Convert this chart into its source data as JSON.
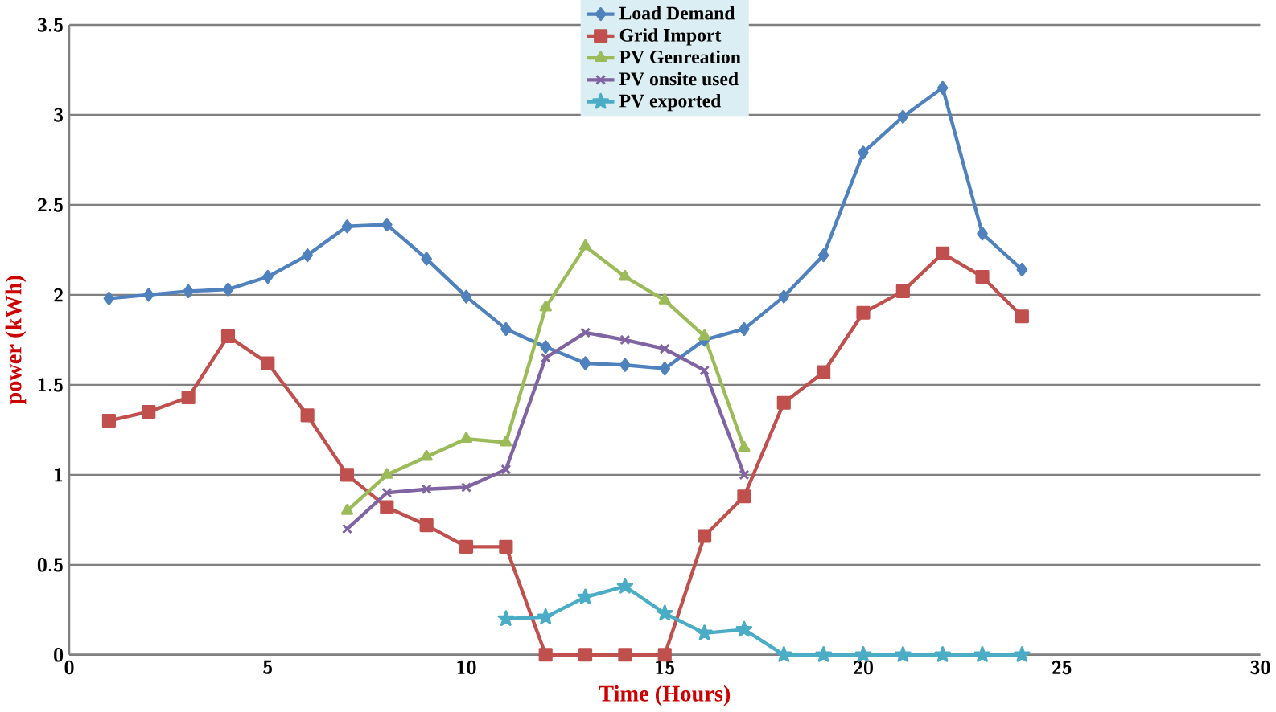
{
  "chart_data": {
    "type": "line",
    "xlabel": "Time (Hours)",
    "ylabel": "power (kWh)",
    "xlim": [
      0,
      30
    ],
    "xticks": [
      0,
      5,
      10,
      15,
      20,
      25,
      30
    ],
    "ylim": [
      0,
      3.5
    ],
    "yticks": [
      0,
      0.5,
      1,
      1.5,
      2,
      2.5,
      3,
      3.5
    ],
    "grid": "y",
    "legend": "top",
    "line_style": "solid",
    "series": [
      {
        "name": "Load Demand",
        "color": "#4f81bd",
        "marker": "diamond",
        "x": [
          1,
          2,
          3,
          4,
          5,
          6,
          7,
          8,
          9,
          10,
          11,
          12,
          13,
          14,
          15,
          16,
          17,
          18,
          19,
          20,
          21,
          22,
          23,
          24
        ],
        "values": [
          1.98,
          2.0,
          2.02,
          2.03,
          2.1,
          2.22,
          2.38,
          2.39,
          2.2,
          1.99,
          1.81,
          1.71,
          1.62,
          1.61,
          1.59,
          1.75,
          1.81,
          1.99,
          2.22,
          2.79,
          2.99,
          3.15,
          2.34,
          2.14
        ]
      },
      {
        "name": "Grid Import",
        "color": "#c0504d",
        "marker": "square",
        "x": [
          1,
          2,
          3,
          4,
          5,
          6,
          7,
          8,
          9,
          10,
          11,
          12,
          13,
          14,
          15,
          16,
          17,
          18,
          19,
          20,
          21,
          22,
          23,
          24
        ],
        "values": [
          1.3,
          1.35,
          1.43,
          1.77,
          1.62,
          1.33,
          1.0,
          0.82,
          0.72,
          0.6,
          0.6,
          0,
          0,
          0,
          0,
          0.66,
          0.88,
          1.4,
          1.57,
          1.9,
          2.02,
          2.23,
          2.1,
          1.88
        ]
      },
      {
        "name": "PV  Genreation",
        "color": "#9bbb59",
        "marker": "triangle",
        "x": [
          7,
          8,
          9,
          10,
          11,
          12,
          13,
          14,
          15,
          16,
          17
        ],
        "values": [
          0.8,
          1.0,
          1.1,
          1.2,
          1.18,
          1.93,
          2.27,
          2.1,
          1.97,
          1.77,
          1.15
        ]
      },
      {
        "name": "PV onsite used",
        "color": "#8064a2",
        "marker": "cross",
        "x": [
          7,
          8,
          9,
          10,
          11,
          12,
          13,
          14,
          15,
          16,
          17
        ],
        "values": [
          0.7,
          0.9,
          0.92,
          0.93,
          1.03,
          1.65,
          1.79,
          1.75,
          1.7,
          1.58,
          1.0
        ]
      },
      {
        "name": "PV exported",
        "color": "#4bacc6",
        "marker": "star",
        "x": [
          11,
          12,
          13,
          14,
          15,
          16,
          17,
          18,
          19,
          20,
          21,
          22,
          23,
          24
        ],
        "values": [
          0.2,
          0.21,
          0.32,
          0.38,
          0.23,
          0.12,
          0.14,
          0,
          0,
          0,
          0,
          0,
          0,
          0
        ]
      }
    ]
  }
}
